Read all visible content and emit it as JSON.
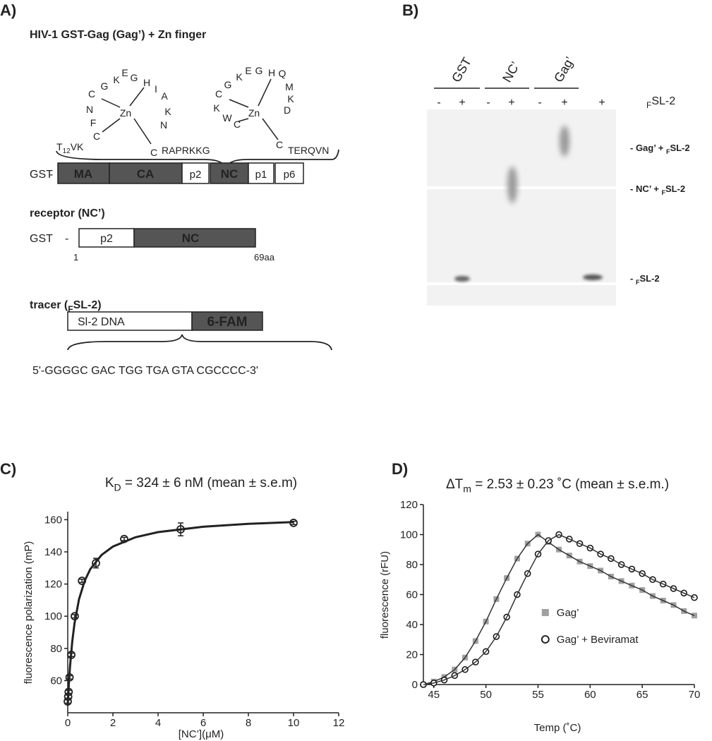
{
  "panel_a": {
    "label": "A)",
    "title": "HIV-1 GST-Gag (Gag’) + Zn finger",
    "zinc_fingers": [
      {
        "zn": "Zn",
        "letters": [
          "C",
          "G",
          "K",
          "E",
          "G",
          "H",
          "I",
          "A",
          "K",
          "N",
          "C",
          "N",
          "F",
          "C"
        ],
        "left_tail": [
          "T",
          {
            "sub": "12"
          },
          "VK"
        ],
        "right_tail": "RAPRKKG"
      },
      {
        "zn": "Zn",
        "letters": [
          "C",
          "G",
          "K",
          "E",
          "G",
          "H",
          "Q",
          "M",
          "K",
          "D",
          "C",
          "K",
          "W",
          "C"
        ],
        "right_tail": "TERQVN"
      }
    ],
    "gag_bar": {
      "prefix": "GST",
      "dash": "-",
      "domains": [
        "MA",
        "CA",
        "p2",
        "NC",
        "p1",
        "p6"
      ]
    },
    "receptor": {
      "title": "receptor (NC’)",
      "prefix": "GST",
      "dash": "-",
      "domains": [
        "p2",
        "NC"
      ],
      "start": "1",
      "end": "69aa"
    },
    "tracer": {
      "title": [
        "tracer (",
        {
          "sub": "F"
        },
        "SL-2)"
      ],
      "domains": [
        "Sl-2 DNA",
        "6-FAM"
      ],
      "sequence": "5'-GGGGC GAC TGG TGA GTA CGCCCC-3'"
    }
  },
  "panel_b": {
    "label": "B)",
    "lanes": [
      "GST",
      "NC’",
      "Gag’"
    ],
    "signs": [
      "-",
      "+",
      "-",
      "+",
      "-",
      "+",
      "+"
    ],
    "tracer_label": [
      {
        "sub": "F"
      },
      "SL-2"
    ],
    "band_labels": [
      [
        "- Gag’ + ",
        {
          "sub": "F"
        },
        "SL-2"
      ],
      [
        "- NC’ + ",
        {
          "sub": "F"
        },
        "SL-2"
      ],
      [
        "- ",
        {
          "sub": "F"
        },
        "SL-2"
      ]
    ]
  },
  "chart_data": [
    {
      "type": "scatter",
      "panel_label": "C)",
      "title": [
        "K",
        {
          "sub": "D"
        },
        " = 324 ± 6 nM (mean ± s.e.m)"
      ],
      "x_label": "[NC’](μM)",
      "y_label": "fluorescence polarization (mP)",
      "x": [
        0,
        0.02,
        0.04,
        0.08,
        0.16,
        0.31,
        0.63,
        1.25,
        2.5,
        5,
        10
      ],
      "values": [
        47,
        50,
        53,
        62,
        76,
        100,
        122,
        133,
        148,
        154,
        158
      ],
      "errors": [
        1,
        1,
        1,
        1,
        1,
        1,
        1,
        3,
        1,
        4,
        1
      ],
      "curve": {
        "x": [
          0,
          0.05,
          0.1,
          0.2,
          0.3,
          0.5,
          0.75,
          1,
          1.5,
          2,
          3,
          4,
          6,
          8,
          10
        ],
        "values": [
          45,
          58.1,
          68.6,
          84.3,
          95.6,
          110.6,
          122,
          129.3,
          138.1,
          143.3,
          149.1,
          152.3,
          155.6,
          157.4,
          158.5
        ]
      },
      "color": "#222",
      "xlim": [
        0,
        12
      ],
      "xticks": [
        0,
        2,
        4,
        6,
        8,
        10,
        12
      ],
      "ylim": [
        40,
        165
      ],
      "yticks": [
        60,
        80,
        100,
        120,
        140,
        160
      ]
    },
    {
      "type": "line",
      "panel_label": "D)",
      "title": [
        "ΔT",
        {
          "sub": "m"
        },
        " = 2.53 ± 0.23 ˚C (mean ± s.e.m.)"
      ],
      "x_label": "Temp (˚C)",
      "y_label": "fluorescence (rFU)",
      "x": [
        44,
        45,
        46,
        47,
        48,
        49,
        50,
        51,
        52,
        53,
        54,
        55,
        56,
        57,
        58,
        59,
        60,
        61,
        62,
        63,
        64,
        65,
        66,
        67,
        68,
        69,
        70
      ],
      "series": [
        {
          "name": "Gag’",
          "color": "#a0a0a0",
          "marker": "square",
          "values": [
            0,
            2,
            5,
            10,
            18,
            29,
            42,
            57,
            71,
            84,
            94,
            100,
            95,
            90,
            86,
            82,
            79,
            76,
            72,
            69,
            66,
            63,
            59,
            56,
            53,
            49,
            46
          ]
        },
        {
          "name": "Gag’ + Beviramat",
          "color": "#111111",
          "marker": "circle",
          "values": [
            0,
            1,
            3,
            6,
            10,
            15,
            22,
            32,
            45,
            60,
            74,
            87,
            96,
            100,
            97,
            94,
            91,
            87,
            84,
            80,
            77,
            74,
            70,
            67,
            64,
            61,
            58
          ]
        }
      ],
      "legend": "right",
      "xlim": [
        44,
        70
      ],
      "xticks": [
        45,
        50,
        55,
        60,
        65,
        70
      ],
      "ylim": [
        0,
        120
      ],
      "yticks": [
        0,
        20,
        40,
        60,
        80,
        100,
        120
      ]
    }
  ]
}
